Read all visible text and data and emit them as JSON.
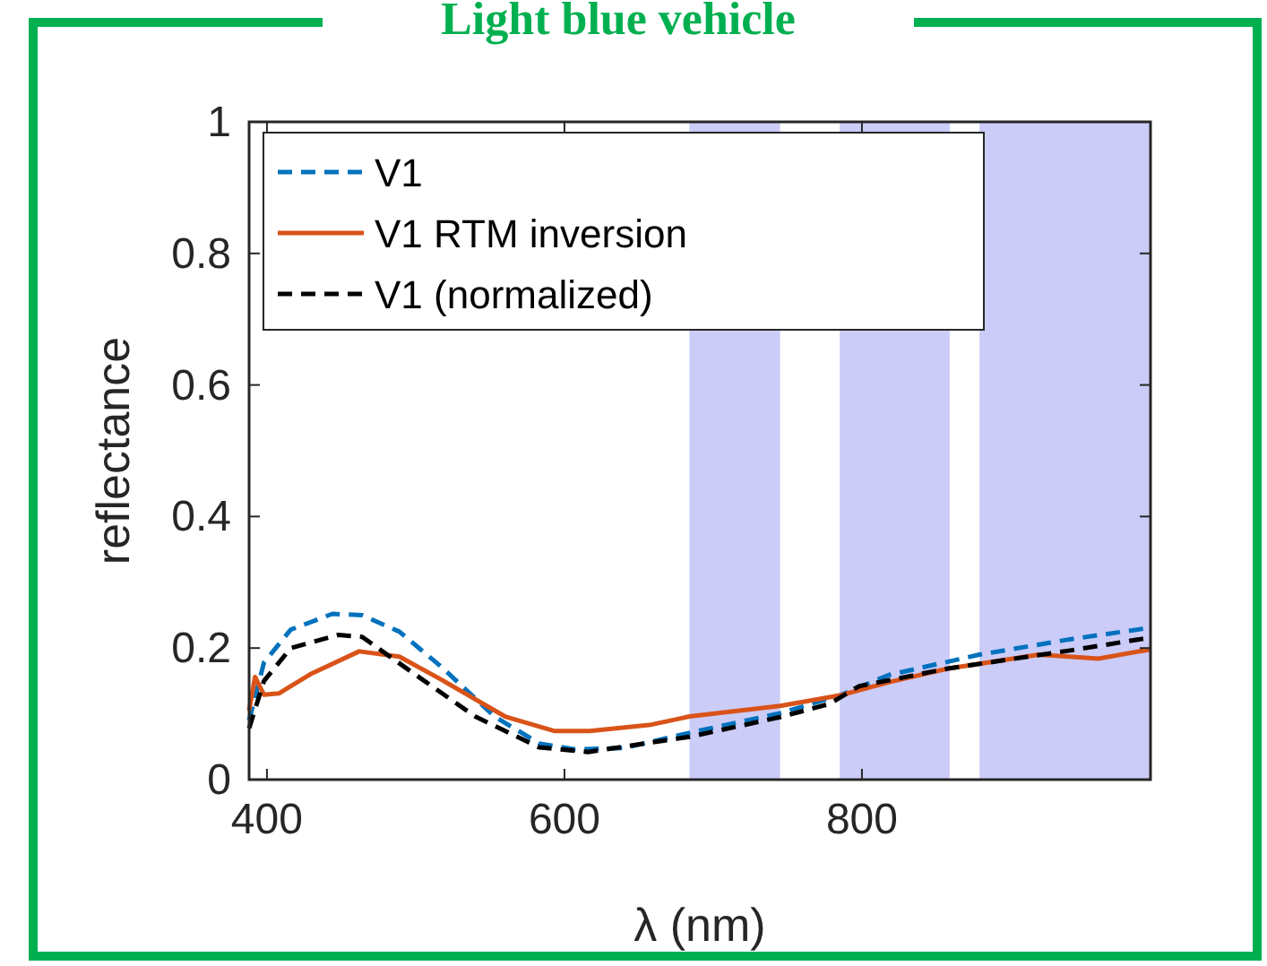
{
  "chart_data": {
    "type": "line",
    "title": "Light blue vehicle",
    "xlabel": "λ (nm)",
    "ylabel": "reflectance",
    "xlim": [
      388,
      994
    ],
    "ylim": [
      0,
      1
    ],
    "xticks": [
      400,
      600,
      800
    ],
    "yticks": [
      0,
      0.2,
      0.4,
      0.6,
      0.8,
      1
    ],
    "grid": false,
    "legend": "top left",
    "bands": [
      {
        "axis": "x",
        "from": 684,
        "to": 745,
        "color": "#ccccf8"
      },
      {
        "axis": "x",
        "from": 785,
        "to": 859,
        "color": "#ccccf8"
      },
      {
        "axis": "x",
        "from": 879,
        "to": 994,
        "color": "#ccccf8"
      }
    ],
    "series": [
      {
        "name": "V1",
        "color": "#0072bd",
        "line_style": "dashed",
        "x": [
          388,
          398,
          416,
          444,
          464,
          489,
          518,
          553,
          583,
          607,
          640,
          684,
          745,
          785,
          818,
          879,
          939,
          994
        ],
        "values": [
          0.09,
          0.178,
          0.228,
          0.252,
          0.25,
          0.225,
          0.17,
          0.096,
          0.055,
          0.046,
          0.048,
          0.071,
          0.101,
          0.128,
          0.159,
          0.19,
          0.213,
          0.231
        ]
      },
      {
        "name": "V1 RTM inversion",
        "color": "#d95319",
        "line_style": "solid",
        "x": [
          388,
          392,
          398,
          408,
          429,
          462,
          489,
          518,
          560,
          593,
          617,
          657,
          684,
          745,
          785,
          818,
          858,
          879,
          919,
          959,
          994
        ],
        "values": [
          0.105,
          0.156,
          0.129,
          0.131,
          0.16,
          0.195,
          0.187,
          0.151,
          0.096,
          0.074,
          0.074,
          0.083,
          0.096,
          0.112,
          0.128,
          0.148,
          0.169,
          0.176,
          0.19,
          0.184,
          0.198
        ]
      },
      {
        "name": "V1 (normalized)",
        "color": "#000000",
        "line_style": "dashed",
        "x": [
          388,
          398,
          416,
          448,
          464,
          497,
          540,
          583,
          616,
          657,
          684,
          745,
          778,
          798,
          858,
          939,
          994
        ],
        "values": [
          0.078,
          0.15,
          0.2,
          0.22,
          0.217,
          0.164,
          0.096,
          0.049,
          0.042,
          0.056,
          0.065,
          0.095,
          0.115,
          0.142,
          0.169,
          0.196,
          0.216
        ]
      }
    ]
  }
}
